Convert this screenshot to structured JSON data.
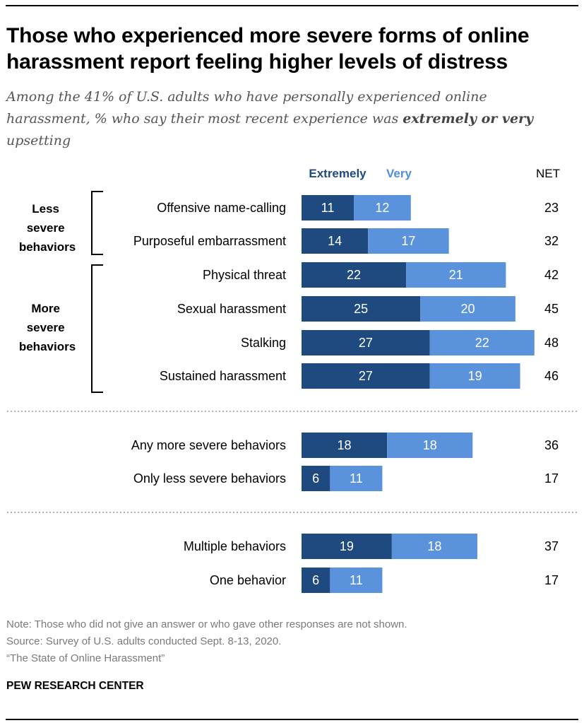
{
  "header": {
    "title": "Those who experienced more severe forms of online harassment report feeling higher levels of distress",
    "subtitle_parts": [
      "Among the 41% of U.S. adults who have personally experienced online harassment, % who say their most recent experience was ",
      "extremely or very",
      " upsetting"
    ]
  },
  "legend": {
    "extremely": "Extremely",
    "very": "Very",
    "net": "NET"
  },
  "groups": [
    {
      "label": [
        "Less",
        "severe",
        "behaviors"
      ]
    },
    {
      "label": [
        "More",
        "severe",
        "behaviors"
      ]
    }
  ],
  "colors": {
    "extremely": "#1f4a7f",
    "very": "#5a93db",
    "legend_extremely": "#1f4a7f",
    "legend_very": "#4f8fd8",
    "separator": "#b0b0b0"
  },
  "chart_data": {
    "type": "bar",
    "orientation": "horizontal",
    "stacked": true,
    "categories": [
      "Offensive name-calling",
      "Purposeful embarrassment",
      "Physical threat",
      "Sexual harassment",
      "Stalking",
      "Sustained harassment",
      "Any more severe behaviors",
      "Only less severe behaviors",
      "Multiple behaviors",
      "One behavior"
    ],
    "series": [
      {
        "name": "Extremely",
        "values": [
          11,
          14,
          22,
          25,
          27,
          27,
          18,
          6,
          19,
          6
        ]
      },
      {
        "name": "Very",
        "values": [
          12,
          17,
          21,
          20,
          22,
          19,
          18,
          11,
          18,
          11
        ]
      }
    ],
    "net": [
      "23",
      "32",
      "42",
      "45",
      "48",
      "46",
      "36",
      "17",
      "37",
      "17"
    ],
    "xlim": [
      0,
      50
    ],
    "grid": false,
    "legend": "top"
  },
  "footer": {
    "note": "Note: Those who did not give an answer or who gave other responses are not shown.",
    "source": "Source: Survey of U.S. adults conducted Sept. 8-13, 2020.",
    "report": "“The State of Online Harassment”",
    "brand": "PEW RESEARCH CENTER"
  }
}
